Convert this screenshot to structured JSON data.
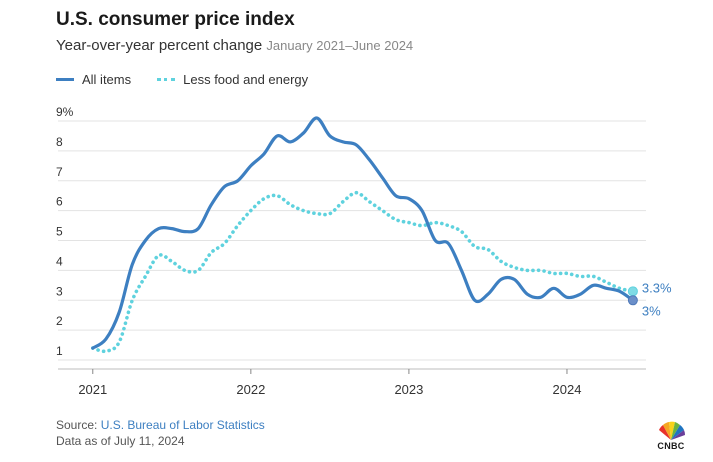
{
  "chart_data": {
    "type": "line",
    "title": "U.S. consumer price index",
    "subtitle": "Year-over-year percent change",
    "date_range": "January 2021–June 2024",
    "xlabel": "",
    "ylabel": "",
    "x_ticks": [
      "2021",
      "2022",
      "2023",
      "2024"
    ],
    "y_ticks": [
      "1",
      "2",
      "3",
      "4",
      "5",
      "6",
      "7",
      "8",
      "9%"
    ],
    "ylim": [
      0.7,
      9
    ],
    "grid": true,
    "legend_position": "top-left",
    "x": [
      2021.0,
      2021.083,
      2021.167,
      2021.25,
      2021.333,
      2021.417,
      2021.5,
      2021.583,
      2021.667,
      2021.75,
      2021.833,
      2021.917,
      2022.0,
      2022.083,
      2022.167,
      2022.25,
      2022.333,
      2022.417,
      2022.5,
      2022.583,
      2022.667,
      2022.75,
      2022.833,
      2022.917,
      2023.0,
      2023.083,
      2023.167,
      2023.25,
      2023.333,
      2023.417,
      2023.5,
      2023.583,
      2023.667,
      2023.75,
      2023.833,
      2023.917,
      2024.0,
      2024.083,
      2024.167,
      2024.25,
      2024.333,
      2024.417
    ],
    "series": [
      {
        "name": "All items",
        "color": "#3d7fc1",
        "style": "solid",
        "values": [
          1.4,
          1.7,
          2.6,
          4.2,
          5.0,
          5.4,
          5.4,
          5.3,
          5.4,
          6.2,
          6.8,
          7.0,
          7.5,
          7.9,
          8.5,
          8.3,
          8.6,
          9.1,
          8.5,
          8.3,
          8.2,
          7.7,
          7.1,
          6.5,
          6.4,
          6.0,
          5.0,
          4.9,
          4.0,
          3.0,
          3.2,
          3.7,
          3.7,
          3.2,
          3.1,
          3.4,
          3.1,
          3.2,
          3.5,
          3.4,
          3.3,
          3.0
        ],
        "end_label": "3%"
      },
      {
        "name": "Less food and energy",
        "color": "#5fd2de",
        "style": "dotted",
        "values": [
          1.4,
          1.3,
          1.6,
          3.0,
          3.8,
          4.5,
          4.3,
          4.0,
          4.0,
          4.6,
          4.9,
          5.5,
          6.0,
          6.4,
          6.5,
          6.2,
          6.0,
          5.9,
          5.9,
          6.3,
          6.6,
          6.3,
          6.0,
          5.7,
          5.6,
          5.5,
          5.6,
          5.5,
          5.3,
          4.8,
          4.7,
          4.3,
          4.1,
          4.0,
          4.0,
          3.9,
          3.9,
          3.8,
          3.8,
          3.6,
          3.4,
          3.3
        ],
        "end_label": "3.3%"
      }
    ]
  },
  "footer": {
    "source_prefix": "Source: ",
    "source_name": "U.S. Bureau of Labor Statistics",
    "as_of": "Data as of July 11, 2024",
    "logo_text": "CNBC"
  }
}
